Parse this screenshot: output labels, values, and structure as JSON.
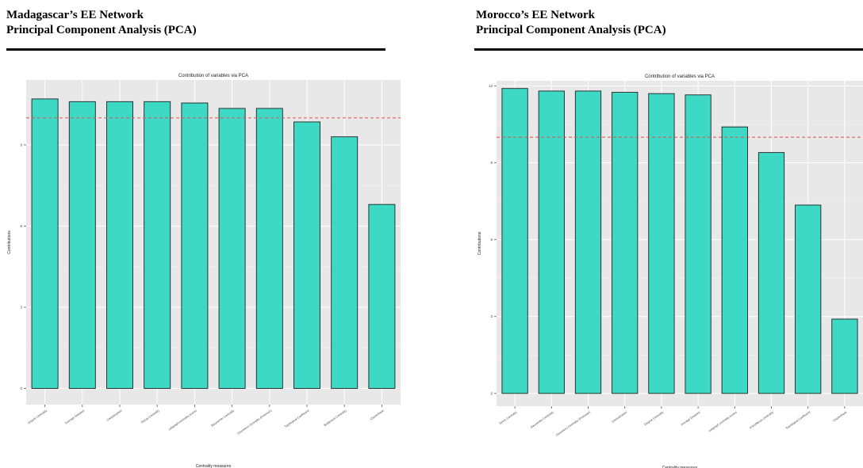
{
  "panels": [
    {
      "heading_line1": "Madagascar’s EE Network",
      "heading_line2": "Principal Component Analysis (PCA)"
    },
    {
      "heading_line1": "Morocco’s EE Network",
      "heading_line2": "Principal Component Analysis (PCA)"
    }
  ],
  "chart_data": [
    {
      "type": "bar",
      "title": "Contribution of variables via PCA",
      "xlabel": "Centrality measures",
      "ylabel": "Contributions",
      "categories": [
        "Degree Centrality",
        "Average Distance",
        "Centralization",
        "Decay Centrality",
        "subgraph.centrality.scores",
        "Barycenter Centrality",
        "Closeness Centrality (Freeman)",
        "Topological Coefficient",
        "Bottleneck Centrality",
        "ClusterRank"
      ],
      "values": [
        10.7,
        10.6,
        10.6,
        10.6,
        10.55,
        10.35,
        10.35,
        9.85,
        9.3,
        6.8
      ],
      "reference_line": 10,
      "ylim": [
        -0.6,
        11.4
      ],
      "yticks": [
        0,
        3,
        6,
        9
      ],
      "ytick_labels": [
        "0",
        "3",
        "6",
        "9"
      ],
      "bar_color": "#3dd9c5",
      "reference_color": "#e05050",
      "panel_bg": "#e8e8e8",
      "grid": true
    },
    {
      "type": "bar",
      "title": "Contribution of variables via PCA",
      "xlabel": "Centrality measures",
      "ylabel": "Contributions",
      "categories": [
        "Dmnc Centrality",
        "Barycenter Centrality",
        "Closeness Centrality (Freeman)",
        "Centralization",
        "Degree Centrality",
        "Average Distance",
        "subgraph.centrality.scores",
        "EntroNexus Centrality",
        "Topological Coefficient",
        "ClusterRank"
      ],
      "values": [
        11.9,
        11.8,
        11.8,
        11.75,
        11.7,
        11.65,
        10.4,
        9.4,
        7.35,
        2.9
      ],
      "reference_line": 10,
      "ylim": [
        -0.5,
        12.2
      ],
      "yticks": [
        0,
        3,
        6,
        9,
        12
      ],
      "ytick_labels": [
        "0",
        "3",
        "6",
        "9",
        "12"
      ],
      "bar_color": "#3dd9c5",
      "reference_color": "#e05050",
      "panel_bg": "#e8e8e8",
      "grid": true
    }
  ]
}
